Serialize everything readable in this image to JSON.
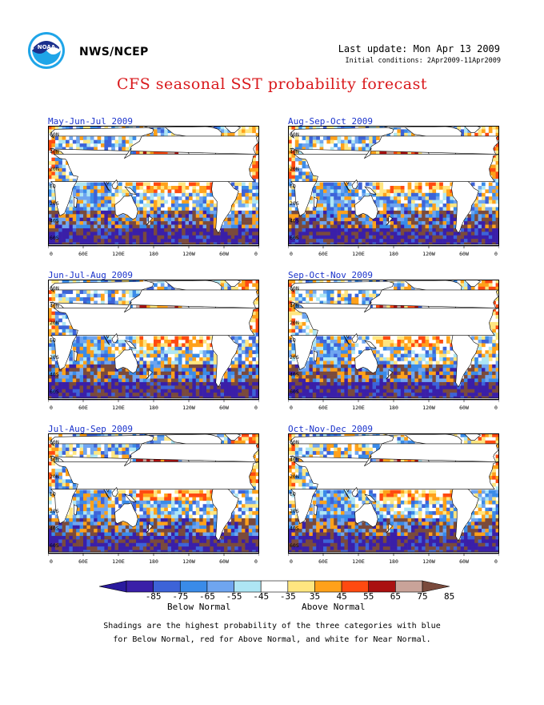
{
  "header": {
    "org": "NWS/NCEP",
    "last_update": "Last update: Mon Apr 13 2009",
    "initial_conditions": "Initial conditions: 2Apr2009-11Apr2009",
    "title": "CFS seasonal SST probability forecast"
  },
  "panels": [
    {
      "title": "May-Jun-Jul 2009"
    },
    {
      "title": "Aug-Sep-Oct 2009"
    },
    {
      "title": "Jun-Jul-Aug 2009"
    },
    {
      "title": "Sep-Oct-Nov 2009"
    },
    {
      "title": "Jul-Aug-Sep 2009"
    },
    {
      "title": "Oct-Nov-Dec 2009"
    }
  ],
  "map_axes": {
    "lat_labels": [
      "60N",
      "40N",
      "20N",
      "EQ",
      "20S",
      "40S",
      "60S"
    ],
    "lon_labels": [
      "0",
      "60E",
      "120E",
      "180",
      "120W",
      "60W",
      "0"
    ]
  },
  "legend": {
    "ticks": [
      "-85",
      "-75",
      "-65",
      "-55",
      "-45",
      "-35",
      "35",
      "45",
      "55",
      "65",
      "75",
      "85"
    ],
    "below_label": "Below Normal",
    "above_label": "Above Normal",
    "colors": [
      "#3a1fa8",
      "#3d63d8",
      "#3a8be8",
      "#6fa5f0",
      "#aee6f4",
      "#ffffff",
      "#ffe680",
      "#ffa11a",
      "#ff4a10",
      "#aa1010",
      "#c9a399"
    ],
    "arrow_left_color": "#2a1a9e",
    "arrow_right_color": "#7a4a3c"
  },
  "caption": {
    "line1": "Shadings are the highest probability of the three categories with blue",
    "line2": "for Below Normal, red for Above Normal, and white for Near Normal."
  }
}
